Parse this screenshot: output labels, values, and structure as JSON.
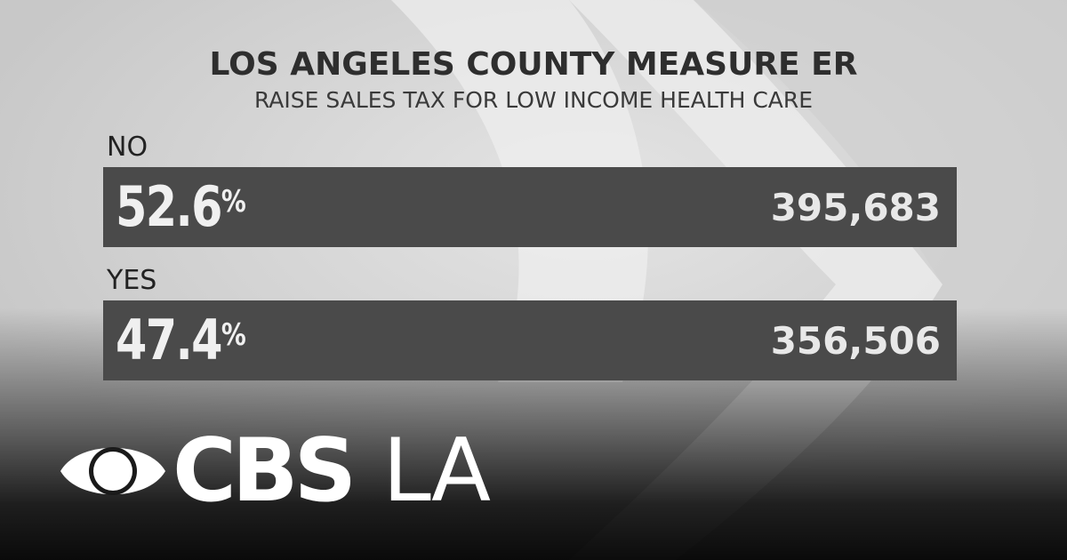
{
  "graphic": {
    "title": "LOS ANGELES COUNTY MEASURE ER",
    "subtitle": "RAISE SALES TAX FOR LOW INCOME HEALTH CARE",
    "results": [
      {
        "label": "NO",
        "percent": "52.6",
        "percent_symbol": "%",
        "votes": "395,683"
      },
      {
        "label": "YES",
        "percent": "47.4",
        "percent_symbol": "%",
        "votes": "356,506"
      }
    ]
  },
  "branding": {
    "logo_icon": "cbs-eye-icon",
    "logo_text": "CBS",
    "station": "LA"
  },
  "colors": {
    "bar": "#4a4a4a",
    "background": "#d6d6d6",
    "text_dark": "#2e2e2e",
    "logo": "#ffffff"
  }
}
